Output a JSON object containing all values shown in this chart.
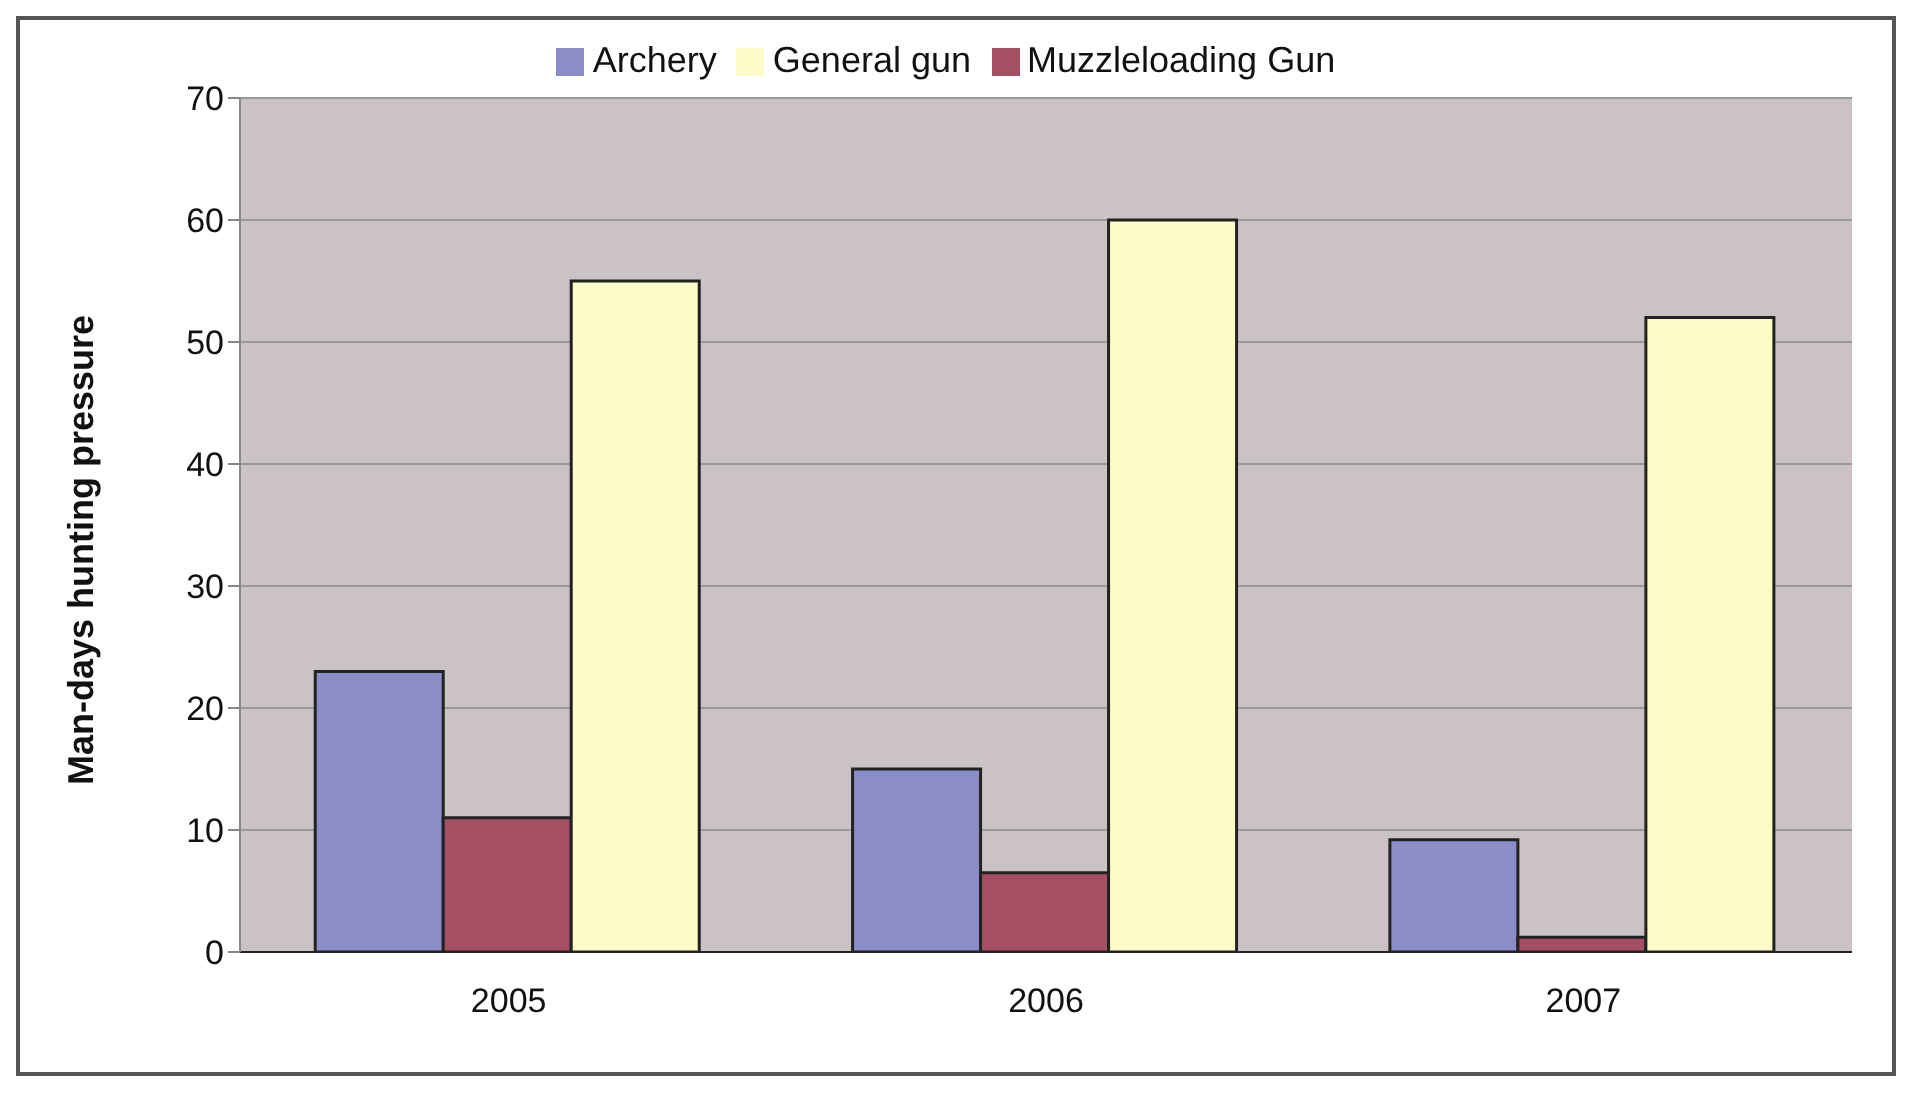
{
  "chart_data": {
    "type": "bar",
    "ylabel": "Man-days hunting pressure",
    "categories": [
      "2005",
      "2006",
      "2007"
    ],
    "series": [
      {
        "name": "Archery",
        "color": "#8a8dc8",
        "values": [
          23,
          15,
          9.2
        ]
      },
      {
        "name": "Muzzleloading Gun",
        "color": "#a44f63",
        "values": [
          11,
          6.5,
          1.2
        ]
      },
      {
        "name": "General gun",
        "color": "#fdfcc6",
        "values": [
          55,
          60,
          52
        ]
      }
    ],
    "ylim": [
      0,
      70
    ],
    "yticks": [
      0,
      10,
      20,
      30,
      40,
      50,
      60,
      70
    ],
    "grid": "y",
    "legend": "top"
  }
}
